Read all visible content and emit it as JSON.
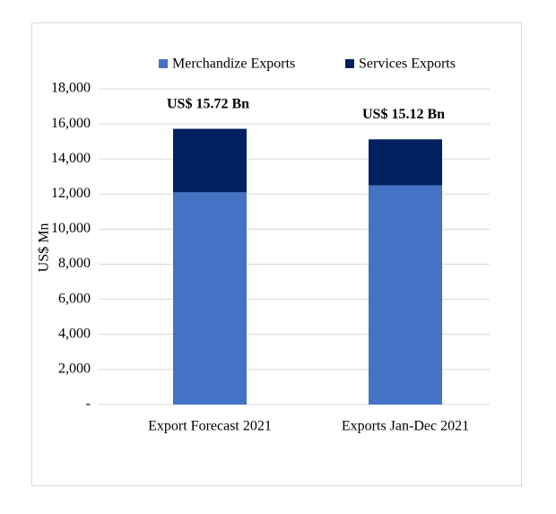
{
  "chart_data": {
    "type": "stacked-bar",
    "y_label": "US$ Mn",
    "categories": [
      "Export Forecast 2021",
      "Exports Jan-Dec 2021"
    ],
    "series": [
      {
        "name": "Merchandize Exports",
        "color": "#4472c4",
        "values": [
          12100,
          12500
        ]
      },
      {
        "name": "Services Exports",
        "color": "#002060",
        "values": [
          3620,
          2620
        ]
      }
    ],
    "annotations": [
      "US$ 15.72 Bn",
      "US$ 15.12 Bn"
    ],
    "ylim": [
      0,
      18000
    ],
    "yticks": [
      {
        "value": 0,
        "label": "-"
      },
      {
        "value": 2000,
        "label": "2,000"
      },
      {
        "value": 4000,
        "label": "4,000"
      },
      {
        "value": 6000,
        "label": "6,000"
      },
      {
        "value": 8000,
        "label": "8,000"
      },
      {
        "value": 10000,
        "label": "10,000"
      },
      {
        "value": 12000,
        "label": "12,000"
      },
      {
        "value": 14000,
        "label": "14,000"
      },
      {
        "value": 16000,
        "label": "16,000"
      },
      {
        "value": 18000,
        "label": "18,000"
      }
    ],
    "grid": true,
    "legend": "top"
  }
}
